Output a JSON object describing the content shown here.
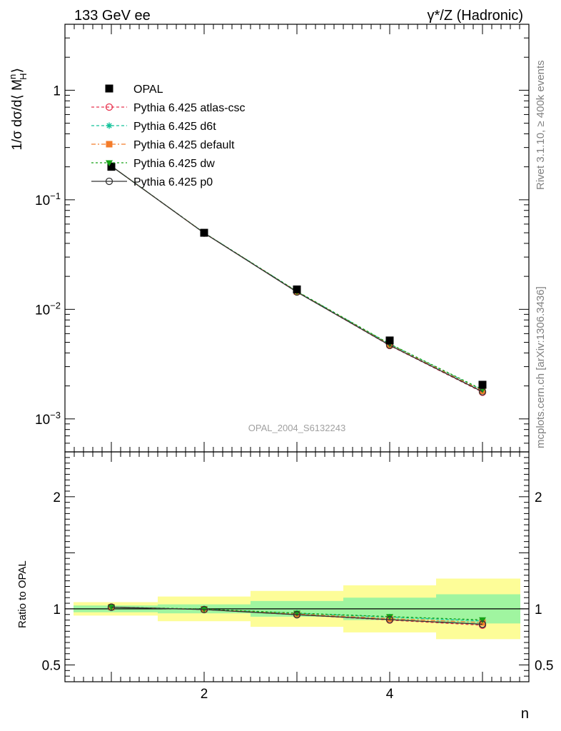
{
  "header": {
    "left_title": "133 GeV ee",
    "right_title": "γ*/Z (Hadronic)"
  },
  "side_labels": {
    "rivet": "Rivet 3.1.10, ≥ 400k events",
    "mcplots": "mcplots.cern.ch [arXiv:1306.3436]"
  },
  "watermark": "OPAL_2004_S6132243",
  "chart_data": [
    {
      "type": "line",
      "panel": "main",
      "ylabel": "1/σ dσ/d⟨ M_H^n ⟩",
      "yscale": "log",
      "xlim": [
        0.5,
        5.5
      ],
      "ylim": [
        0.0005,
        4.0
      ],
      "yticks": [
        {
          "value": 0.001,
          "label": "10^-3"
        },
        {
          "value": 0.01,
          "label": "10^-2"
        },
        {
          "value": 0.1,
          "label": "10^-1"
        },
        {
          "value": 1,
          "label": "1"
        }
      ],
      "legend_position": "top-left",
      "x": [
        1,
        2,
        3,
        4,
        5
      ],
      "series": [
        {
          "name": "OPAL",
          "color": "#000000",
          "marker": "square",
          "values": [
            0.2,
            0.05,
            0.0152,
            0.0052,
            0.00205
          ]
        },
        {
          "name": "Pythia 6.425 atlas-csc",
          "color": "#e8344f",
          "marker": "open-circle",
          "dash": "4,3",
          "values": [
            0.203,
            0.0497,
            0.0144,
            0.00468,
            0.00175
          ]
        },
        {
          "name": "Pythia 6.425 d6t",
          "color": "#13c29a",
          "marker": "star",
          "dash": "4,3",
          "values": [
            0.203,
            0.0499,
            0.0146,
            0.00482,
            0.00183
          ]
        },
        {
          "name": "Pythia 6.425 default",
          "color": "#f47c2a",
          "marker": "filled-square",
          "dash": "6,3,2,3",
          "values": [
            0.203,
            0.0498,
            0.0145,
            0.00475,
            0.0018
          ]
        },
        {
          "name": "Pythia 6.425 dw",
          "color": "#16a216",
          "marker": "triangle-down",
          "dash": "3,3",
          "values": [
            0.203,
            0.0499,
            0.0146,
            0.00484,
            0.00185
          ]
        },
        {
          "name": "Pythia 6.425 p0",
          "color": "#333333",
          "marker": "open-circle",
          "dash": "",
          "values": [
            0.203,
            0.0497,
            0.0144,
            0.0047,
            0.00177
          ]
        }
      ]
    },
    {
      "type": "line",
      "panel": "ratio",
      "xlabel": "n",
      "ylabel": "Ratio to OPAL",
      "xlim": [
        0.5,
        5.5
      ],
      "ylim": [
        0.35,
        2.4
      ],
      "xticks": [
        2,
        4
      ],
      "yticks": [
        {
          "value": 0.5,
          "label": "0.5"
        },
        {
          "value": 1,
          "label": "1"
        },
        {
          "value": 2,
          "label": "2"
        }
      ],
      "bands": [
        {
          "x0": 0.5,
          "x1": 1.5,
          "inner": [
            0.97,
            1.03
          ],
          "outer": [
            0.94,
            1.06
          ]
        },
        {
          "x0": 1.5,
          "x1": 2.5,
          "inner": [
            0.96,
            1.04
          ],
          "outer": [
            0.89,
            1.11
          ]
        },
        {
          "x0": 2.5,
          "x1": 3.5,
          "inner": [
            0.93,
            1.07
          ],
          "outer": [
            0.84,
            1.16
          ]
        },
        {
          "x0": 3.5,
          "x1": 4.5,
          "inner": [
            0.9,
            1.1
          ],
          "outer": [
            0.79,
            1.21
          ]
        },
        {
          "x0": 4.5,
          "x1": 5.5,
          "inner": [
            0.87,
            1.13
          ],
          "outer": [
            0.73,
            1.27
          ]
        }
      ],
      "band_colors": {
        "inner": "#a0f5a0",
        "outer": "#fdfd98"
      },
      "x": [
        1,
        2,
        3,
        4,
        5
      ],
      "series": [
        {
          "name": "Pythia 6.425 atlas-csc",
          "color": "#e8344f",
          "marker": "open-circle",
          "dash": "4,3",
          "values": [
            1.015,
            0.994,
            0.948,
            0.9,
            0.854
          ]
        },
        {
          "name": "Pythia 6.425 d6t",
          "color": "#13c29a",
          "marker": "star",
          "dash": "4,3",
          "values": [
            1.015,
            0.997,
            0.96,
            0.927,
            0.893
          ]
        },
        {
          "name": "Pythia 6.425 default",
          "color": "#f47c2a",
          "marker": "filled-square",
          "dash": "6,3,2,3",
          "values": [
            1.015,
            0.996,
            0.954,
            0.913,
            0.878
          ]
        },
        {
          "name": "Pythia 6.425 dw",
          "color": "#16a216",
          "marker": "triangle-down",
          "dash": "3,3",
          "values": [
            1.015,
            0.998,
            0.962,
            0.931,
            0.902
          ]
        },
        {
          "name": "Pythia 6.425 p0",
          "color": "#333333",
          "marker": "open-circle",
          "dash": "",
          "values": [
            1.015,
            0.994,
            0.948,
            0.904,
            0.863
          ]
        }
      ]
    }
  ]
}
